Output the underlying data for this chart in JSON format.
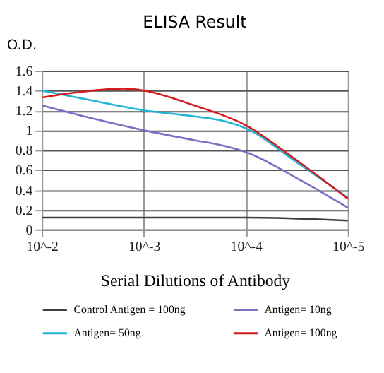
{
  "chart_data": {
    "type": "line",
    "title": "ELISA Result",
    "ylabel": "O.D.",
    "xlabel": "Serial Dilutions of Antibody",
    "log": "x",
    "xlim": [
      0.01,
      1e-05
    ],
    "xticks": [
      {
        "value": 0.01,
        "label": "10^-2"
      },
      {
        "value": 0.001,
        "label": "10^-3"
      },
      {
        "value": 0.0001,
        "label": "10^-4"
      },
      {
        "value": 1e-05,
        "label": "10^-5"
      }
    ],
    "ylim": [
      0,
      1.6
    ],
    "yticks": [
      0,
      {
        "value": 0.2,
        "label": "0.2"
      },
      {
        "value": 0.4,
        "label": "0.4"
      },
      {
        "value": 0.6,
        "label": "0.6"
      },
      {
        "value": 0.8,
        "label": "0.8"
      },
      1,
      {
        "value": 1.2,
        "label": "1.2"
      },
      {
        "value": 1.4,
        "label": "1.4"
      },
      {
        "value": 1.6,
        "label": "1.6"
      }
    ],
    "grid": true,
    "legend": "bottom",
    "marker": "none",
    "line_style": "solid",
    "series": [
      {
        "name": "Control Antigen = 100ng",
        "color": "#404040",
        "x": [
          0.01,
          0.001,
          0.0001,
          1e-05
        ],
        "values": [
          0.12,
          0.12,
          0.12,
          0.09
        ]
      },
      {
        "name": "Antigen= 10ng",
        "color": "#7e6bc4",
        "x": [
          0.01,
          0.0032,
          0.001,
          0.00032,
          0.00016,
          0.0001,
          3.2e-05,
          1e-05
        ],
        "values": [
          1.25,
          1.12,
          1.0,
          0.9,
          0.84,
          0.78,
          0.52,
          0.22
        ]
      },
      {
        "name": "Antigen= 50ng",
        "color": "#1fb5d6",
        "x": [
          0.01,
          0.0032,
          0.001,
          0.00032,
          0.00016,
          0.0001,
          3.2e-05,
          1e-05
        ],
        "values": [
          1.4,
          1.3,
          1.2,
          1.14,
          1.09,
          1.02,
          0.68,
          0.32
        ]
      },
      {
        "name": "Antigen= 100ng",
        "color": "#d7191c",
        "x": [
          0.01,
          0.0032,
          0.0016,
          0.001,
          0.00032,
          0.0001,
          3.2e-05,
          1e-05
        ],
        "values": [
          1.33,
          1.4,
          1.42,
          1.4,
          1.25,
          1.05,
          0.7,
          0.31
        ]
      }
    ]
  }
}
